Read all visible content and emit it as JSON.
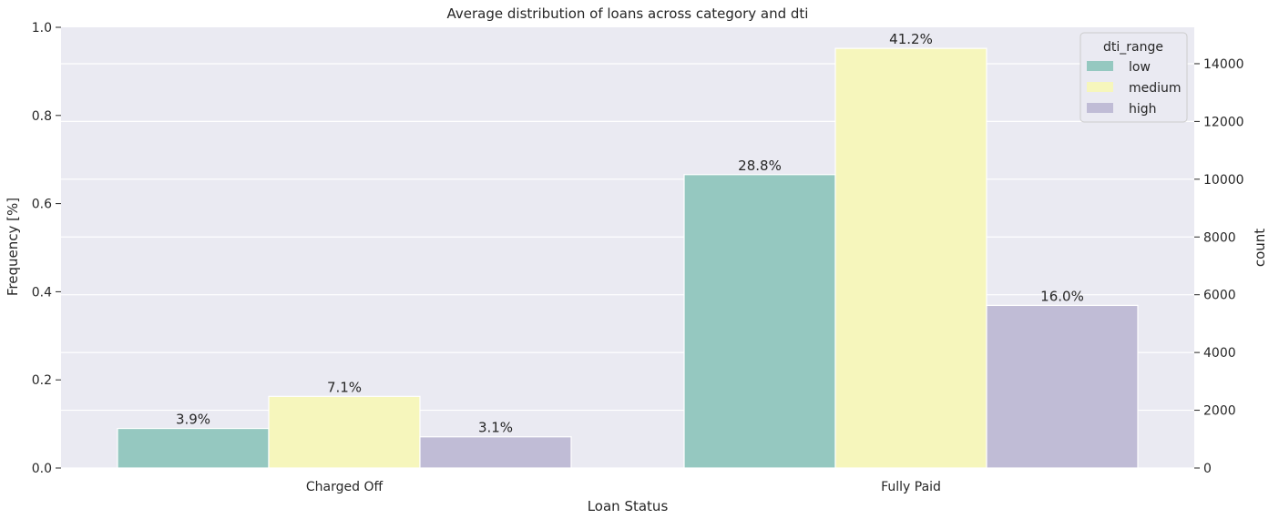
{
  "chart_data": {
    "type": "bar",
    "title": "Average distribution of loans across category and dti",
    "xlabel": "Loan Status",
    "ylabel": "Frequency [%]",
    "ylabel_right": "count",
    "categories": [
      "Charged Off",
      "Fully Paid"
    ],
    "series": [
      {
        "name": "low",
        "color": "#95c8c0",
        "values": [
          1370,
          10160
        ],
        "labels": [
          "3.9%",
          "28.8%"
        ]
      },
      {
        "name": "medium",
        "color": "#f6f6bc",
        "values": [
          2480,
          14530
        ],
        "labels": [
          "7.1%",
          "41.2%"
        ]
      },
      {
        "name": "high",
        "color": "#c0bcd6",
        "values": [
          1080,
          5630
        ],
        "labels": [
          "3.1%",
          "16.0%"
        ]
      }
    ],
    "ylim_left": [
      0,
      1.0
    ],
    "yticks_left": [
      "0.0",
      "0.2",
      "0.4",
      "0.6",
      "0.8",
      "1.0"
    ],
    "ylim_right": [
      0,
      15260
    ],
    "yticks_right": [
      "0",
      "2000",
      "4000",
      "6000",
      "8000",
      "10000",
      "12000",
      "14000"
    ],
    "grid": true,
    "background": "#eaeaf2",
    "legend": {
      "title": "dti_range",
      "placement": "top-right"
    }
  }
}
